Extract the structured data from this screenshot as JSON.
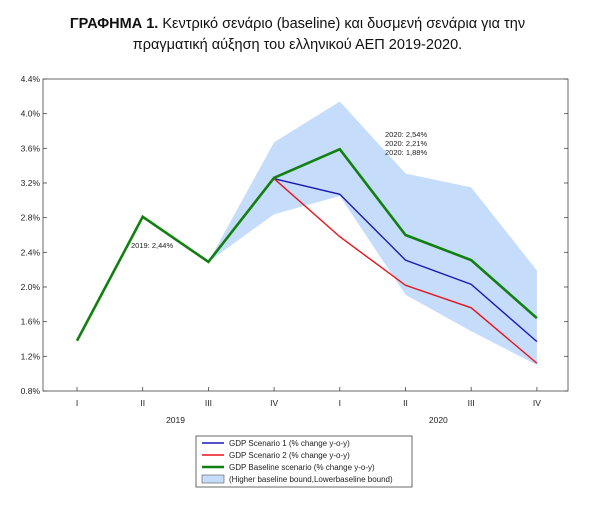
{
  "title": {
    "bold": "ΓΡΑΦΗΜΑ 1.",
    "line1": " Κεντρικό σενάριο (baseline) και δυσμενή σενάρια για την",
    "line2": "πραγματική αύξηση του ελληνικού ΑΕΠ 2019-2020."
  },
  "chart_data": {
    "type": "line",
    "categories": [
      "I",
      "II",
      "III",
      "IV",
      "I",
      "II",
      "III",
      "IV"
    ],
    "year_labels": [
      "2019",
      "2020"
    ],
    "ylim": [
      0.8,
      4.4
    ],
    "yticks": [
      "0.8%",
      "1.2%",
      "1.6%",
      "2.0%",
      "2.4%",
      "2.8%",
      "3.2%",
      "3.6%",
      "4.0%",
      "4.4%"
    ],
    "series": [
      {
        "name": "GDP Scenario 1 (% change y-o-y)",
        "color": "#1a1ab4",
        "values": [
          null,
          null,
          null,
          3.25,
          3.07,
          2.31,
          2.03,
          1.37
        ]
      },
      {
        "name": "GDP Scenario 2 (% change y-o-y)",
        "color": "#e8141c",
        "values": [
          null,
          null,
          null,
          3.25,
          2.58,
          2.02,
          1.76,
          1.12
        ]
      },
      {
        "name": "GDP Baseline scenario (% change y-o-y)",
        "color": "#118011",
        "values": [
          1.38,
          2.81,
          2.29,
          3.26,
          3.59,
          2.6,
          2.31,
          1.64
        ]
      }
    ],
    "band": {
      "name": "(Higher baseline bound,Lowerbaseline bound)",
      "color": "#c6dcfb",
      "upper": [
        null,
        null,
        2.29,
        3.67,
        4.14,
        3.31,
        3.15,
        2.19
      ],
      "lower": [
        null,
        null,
        2.29,
        2.84,
        3.05,
        1.91,
        1.49,
        1.1
      ]
    },
    "annotations": [
      "2019: 2,44%",
      "2020: 2,54%",
      "2020: 2,21%",
      "2020: 1,88%"
    ],
    "grid": false,
    "legend": "bottom"
  }
}
